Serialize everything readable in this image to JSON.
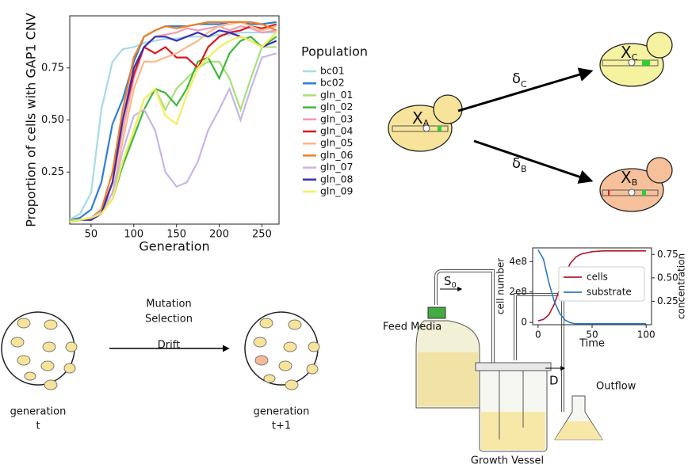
{
  "chart_data": [
    {
      "type": "line",
      "ylabel": "Proportion of cells with GAP1 CNV",
      "xlabel": "Generation",
      "legend_title": "Population",
      "legend": "right",
      "xlim": [
        25,
        270
      ],
      "xticks": [
        50,
        100,
        150,
        200,
        250
      ],
      "ylim": [
        0,
        1
      ],
      "yticks": [
        0.25,
        {
          "value": 0.5,
          "label": "0.50"
        },
        0.75
      ],
      "x": [
        25,
        37,
        50,
        62,
        75,
        87,
        100,
        112,
        125,
        137,
        150,
        162,
        175,
        187,
        200,
        212,
        225,
        237,
        250,
        267
      ],
      "series": [
        {
          "name": "bc01",
          "color": "#a6dbe8",
          "values": [
            0.02,
            0.05,
            0.15,
            0.55,
            0.78,
            0.84,
            0.85,
            0.87,
            0.88,
            0.89,
            0.89,
            0.9,
            0.9,
            0.9,
            0.91,
            0.91,
            0.92,
            0.92,
            0.92,
            0.92
          ]
        },
        {
          "name": "bc02",
          "color": "#2f7fcf",
          "values": [
            0.02,
            0.03,
            0.07,
            0.2,
            0.48,
            0.6,
            0.78,
            0.9,
            0.93,
            0.95,
            0.95,
            0.95,
            0.96,
            0.96,
            0.96,
            0.97,
            0.97,
            0.96,
            0.96,
            0.97
          ]
        },
        {
          "name": "gln_01",
          "color": "#a9e07a",
          "values": [
            0.02,
            0.02,
            0.03,
            0.05,
            0.15,
            0.3,
            0.45,
            0.6,
            0.65,
            0.55,
            0.65,
            0.7,
            0.75,
            0.78,
            0.78,
            0.7,
            0.55,
            0.7,
            0.85,
            0.85
          ]
        },
        {
          "name": "gln_02",
          "color": "#3fb83a",
          "values": [
            0.01,
            0.02,
            0.03,
            0.05,
            0.12,
            0.28,
            0.42,
            0.55,
            0.65,
            0.63,
            0.57,
            0.65,
            0.78,
            0.8,
            0.7,
            0.82,
            0.88,
            0.9,
            0.85,
            0.9
          ]
        },
        {
          "name": "gln_03",
          "color": "#f29ab0",
          "values": [
            0.01,
            0.02,
            0.03,
            0.06,
            0.2,
            0.45,
            0.7,
            0.85,
            0.9,
            0.91,
            0.92,
            0.94,
            0.93,
            0.94,
            0.95,
            0.93,
            0.95,
            0.94,
            0.92,
            0.93
          ]
        },
        {
          "name": "gln_04",
          "color": "#d7191c",
          "values": [
            0.01,
            0.02,
            0.03,
            0.06,
            0.2,
            0.5,
            0.72,
            0.85,
            0.82,
            0.85,
            0.8,
            0.8,
            0.75,
            0.85,
            0.9,
            0.92,
            0.93,
            0.95,
            0.94,
            0.96
          ]
        },
        {
          "name": "gln_05",
          "color": "#f9b98a",
          "values": [
            0.01,
            0.02,
            0.03,
            0.05,
            0.15,
            0.4,
            0.65,
            0.78,
            0.78,
            0.8,
            0.82,
            0.85,
            0.88,
            0.92,
            0.95,
            0.96,
            0.97,
            0.95,
            0.93,
            0.95
          ]
        },
        {
          "name": "gln_06",
          "color": "#f07f22",
          "values": [
            0.01,
            0.02,
            0.03,
            0.07,
            0.25,
            0.55,
            0.8,
            0.9,
            0.93,
            0.95,
            0.94,
            0.95,
            0.96,
            0.97,
            0.97,
            0.97,
            0.97,
            0.97,
            0.96,
            0.93
          ]
        },
        {
          "name": "gln_07",
          "color": "#c9b5e6",
          "values": [
            0.01,
            0.02,
            0.03,
            0.06,
            0.15,
            0.35,
            0.52,
            0.55,
            0.45,
            0.25,
            0.18,
            0.2,
            0.3,
            0.45,
            0.55,
            0.65,
            0.5,
            0.65,
            0.8,
            0.82
          ]
        },
        {
          "name": "gln_08",
          "color": "#3a2fb5",
          "values": [
            0.01,
            0.02,
            0.02,
            0.05,
            0.2,
            0.5,
            0.75,
            0.85,
            0.9,
            0.9,
            0.88,
            0.9,
            0.92,
            0.9,
            0.93,
            0.92,
            0.9,
            0.88,
            0.85,
            0.88
          ]
        },
        {
          "name": "gln_09",
          "color": "#f4ee5a",
          "values": [
            0.01,
            0.02,
            0.03,
            0.05,
            0.12,
            0.3,
            0.45,
            0.6,
            0.65,
            0.52,
            0.48,
            0.62,
            0.75,
            0.8,
            0.85,
            0.88,
            0.9,
            0.88,
            0.85,
            0.92
          ]
        }
      ]
    },
    {
      "type": "line",
      "ylabel": "cell number",
      "y2label": "concentration",
      "xlabel": "Time",
      "legend": "inside",
      "xlim": [
        -5,
        105
      ],
      "xticks": [
        0,
        50,
        100
      ],
      "ylim": [
        -15000000,
        490000000
      ],
      "yticks": [
        0,
        {
          "value": 200000000,
          "label": "2e8"
        },
        {
          "value": 400000000,
          "label": "4e8"
        }
      ],
      "y2lim": [
        0,
        0.82
      ],
      "y2ticks": [
        0.25,
        {
          "value": 0.5,
          "label": "0.50"
        },
        0.75
      ],
      "x": [
        0,
        5,
        10,
        15,
        20,
        25,
        30,
        35,
        40,
        50,
        60,
        80,
        100
      ],
      "series": [
        {
          "name": "cells",
          "color": "#b2182b",
          "values": [
            10000000,
            20000000,
            50000000,
            120000000,
            220000000,
            320000000,
            390000000,
            430000000,
            450000000,
            465000000,
            470000000,
            470000000,
            470000000
          ]
        },
        {
          "name": "substrate",
          "color": "#2c7bc0",
          "axis": "y2",
          "values": [
            0.8,
            0.7,
            0.45,
            0.25,
            0.12,
            0.05,
            0.02,
            0.01,
            0.01,
            0.01,
            0.01,
            0.01,
            0.01
          ]
        }
      ]
    }
  ],
  "model": {
    "cell_a": {
      "label": "X",
      "sub": "A"
    },
    "cell_c": {
      "label": "X",
      "sub": "C"
    },
    "cell_b": {
      "label": "X",
      "sub": "B"
    },
    "rate_c": {
      "label": "δ",
      "sub": "C"
    },
    "rate_b": {
      "label": "δ",
      "sub": "B"
    }
  },
  "evolution": {
    "start": [
      "generation",
      "t"
    ],
    "steps": [
      "Mutation",
      "Selection"
    ],
    "drift": "Drift",
    "end": [
      "generation",
      "t+1"
    ]
  },
  "chemostat": {
    "feed": "Feed Media",
    "inflow": {
      "label": "S",
      "sub": "0"
    },
    "dilution": "D",
    "outflow": "Outflow",
    "vessel": "Growth Vessel"
  }
}
